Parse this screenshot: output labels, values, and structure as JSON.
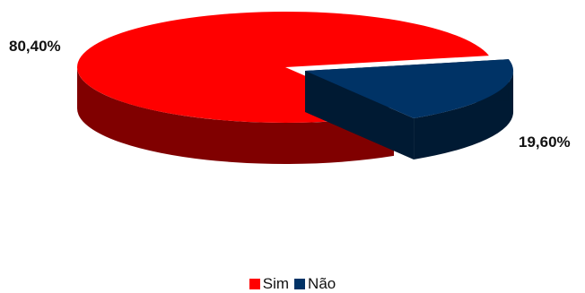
{
  "chart_data": {
    "type": "pie",
    "title": "",
    "style": "3d-exploded",
    "legend_position": "bottom",
    "series": [
      {
        "name": "Sim",
        "value": 80.4,
        "label": "80,40%",
        "color": "#ff0000",
        "side_color": "#800000"
      },
      {
        "name": "Não",
        "value": 19.6,
        "label": "19,60%",
        "color": "#003366",
        "side_color": "#001a33"
      }
    ]
  }
}
